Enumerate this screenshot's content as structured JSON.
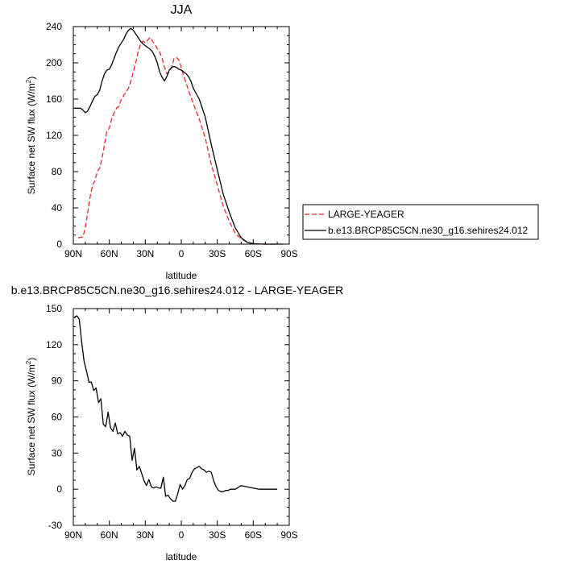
{
  "chart_data": [
    {
      "type": "line",
      "title": "JJA",
      "xlabel": "latitude",
      "ylabel": "Surface net SW flux (W/m",
      "ylabel_sup": "2",
      "ylabel_close": ")",
      "xlim": [
        90,
        -90
      ],
      "ylim": [
        0,
        240
      ],
      "xticks": [
        90,
        60,
        30,
        0,
        -30,
        -60,
        -90
      ],
      "xtick_labels": [
        "90N",
        "60N",
        "30N",
        "0",
        "30S",
        "60S",
        "90S"
      ],
      "yticks": [
        0,
        40,
        80,
        120,
        160,
        200,
        240
      ],
      "ytick_labels": [
        "0",
        "40",
        "80",
        "120",
        "160",
        "200",
        "240"
      ],
      "legend_position": "right, outside plot",
      "series": [
        {
          "name": "LARGE-YEAGER",
          "color": "#e8282a",
          "dash": "dashed",
          "x": [
            86,
            82,
            80,
            78,
            76,
            74,
            72,
            70,
            68,
            66,
            64,
            62,
            60,
            58,
            56,
            54,
            52,
            50,
            48,
            46,
            44,
            42,
            40,
            38,
            36,
            34,
            32,
            30,
            28,
            26,
            24,
            22,
            20,
            18,
            16,
            14,
            12,
            10,
            8,
            6,
            4,
            2,
            0,
            -2,
            -4,
            -6,
            -10,
            -15,
            -20,
            -25,
            -30,
            -35,
            -40,
            -45,
            -50,
            -55,
            -60,
            -65,
            -70,
            -75,
            -80
          ],
          "y": [
            7,
            8,
            18,
            35,
            52,
            65,
            70,
            80,
            84,
            95,
            110,
            125,
            128,
            138,
            145,
            150,
            152,
            160,
            164,
            168,
            172,
            180,
            190,
            200,
            212,
            220,
            224,
            222,
            225,
            228,
            224,
            220,
            216,
            212,
            205,
            195,
            188,
            190,
            195,
            205,
            206,
            203,
            195,
            185,
            178,
            170,
            155,
            138,
            117,
            88,
            65,
            42,
            25,
            12,
            6,
            2,
            0.5,
            0.2,
            0,
            0,
            0
          ]
        },
        {
          "name": "b.e13.BRCP85C5CN.ne30_g16.sehires24.012",
          "color": "#000000",
          "dash": "solid",
          "x": [
            89,
            86,
            84,
            82,
            80,
            78,
            76,
            74,
            72,
            70,
            68,
            66,
            64,
            62,
            60,
            58,
            56,
            54,
            52,
            50,
            48,
            46,
            44,
            42,
            40,
            38,
            36,
            34,
            32,
            30,
            28,
            26,
            24,
            22,
            20,
            18,
            16,
            14,
            12,
            10,
            8,
            6,
            4,
            2,
            0,
            -2,
            -4,
            -6,
            -8,
            -10,
            -15,
            -20,
            -25,
            -30,
            -35,
            -40,
            -45,
            -50,
            -55,
            -60,
            -65,
            -70,
            -75,
            -80,
            -85
          ],
          "y": [
            150,
            150,
            150,
            148,
            145,
            147,
            152,
            158,
            163,
            165,
            170,
            180,
            188,
            192,
            193,
            198,
            205,
            212,
            218,
            222,
            226,
            232,
            236,
            238,
            236,
            232,
            228,
            224,
            221,
            219,
            217,
            215,
            212,
            207,
            200,
            190,
            184,
            180,
            185,
            192,
            195,
            196,
            195,
            193,
            192,
            190,
            188,
            185,
            180,
            172,
            160,
            140,
            110,
            82,
            55,
            35,
            18,
            7,
            2,
            0.5,
            0.2,
            0,
            0,
            0,
            0
          ]
        }
      ]
    },
    {
      "type": "line",
      "title": "b.e13.BRCP85C5CN.ne30_g16.sehires24.012 - LARGE-YEAGER",
      "xlabel": "latitude",
      "ylabel": "Surface net SW flux (W/m",
      "ylabel_sup": "2",
      "ylabel_close": ")",
      "xlim": [
        90,
        -90
      ],
      "ylim": [
        -30,
        150
      ],
      "xticks": [
        90,
        60,
        30,
        0,
        -30,
        -60,
        -90
      ],
      "xtick_labels": [
        "90N",
        "60N",
        "30N",
        "0",
        "30S",
        "60S",
        "90S"
      ],
      "yticks": [
        -30,
        0,
        30,
        60,
        90,
        120,
        150
      ],
      "ytick_labels": [
        "-30",
        "0",
        "30",
        "60",
        "90",
        "120",
        "150"
      ],
      "series": [
        {
          "color": "#000000",
          "dash": "solid",
          "x": [
            89,
            87,
            85,
            83,
            81,
            79,
            77,
            75,
            73,
            71,
            69,
            67,
            65,
            63,
            61,
            59,
            57,
            55,
            53,
            51,
            49,
            47,
            45,
            43,
            41,
            39,
            37,
            35,
            33,
            31,
            29,
            27,
            25,
            23,
            21,
            19,
            17,
            15,
            13,
            11,
            9,
            7,
            5,
            3,
            1,
            -1,
            -3,
            -5,
            -7,
            -9,
            -11,
            -13,
            -15,
            -17,
            -19,
            -21,
            -23,
            -25,
            -27,
            -29,
            -31,
            -33,
            -35,
            -37,
            -39,
            -41,
            -45,
            -50,
            -55,
            -60,
            -65,
            -70,
            -75,
            -80
          ],
          "y": [
            143,
            144,
            141,
            122,
            106,
            98,
            89,
            89,
            82,
            84,
            72,
            75,
            54,
            52,
            64,
            51,
            48,
            55,
            46,
            47,
            44,
            48,
            45,
            44,
            24,
            34,
            16,
            19,
            13,
            7,
            3,
            8,
            2,
            1,
            2,
            1,
            1,
            10,
            -6,
            -5,
            -8,
            -10,
            -10,
            -4,
            4,
            0,
            3,
            8,
            9,
            14,
            17,
            18,
            19,
            17,
            16,
            14,
            15,
            14,
            7,
            2,
            -1,
            -2,
            -2,
            -1,
            -1,
            0,
            0,
            3,
            2,
            1,
            0,
            0,
            0,
            0
          ]
        }
      ]
    }
  ]
}
